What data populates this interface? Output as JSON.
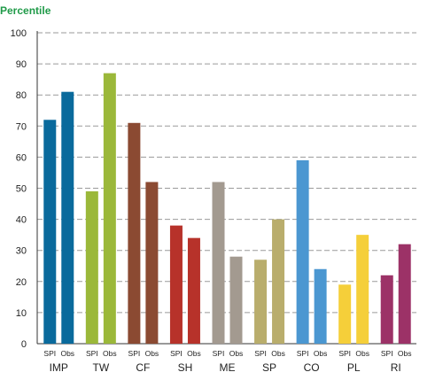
{
  "chart_data": {
    "type": "bar",
    "ylabel": "Percentile",
    "ylim": [
      0,
      100
    ],
    "yticks": [
      0,
      10,
      20,
      30,
      40,
      50,
      60,
      70,
      80,
      90,
      100
    ],
    "grid": "horizontal-dashed",
    "bar_labels": [
      "SPI",
      "Obs"
    ],
    "categories": [
      {
        "name": "IMP",
        "color": "#0a6a9c",
        "values": [
          72,
          81
        ]
      },
      {
        "name": "TW",
        "color": "#9bb83a",
        "values": [
          49,
          87
        ]
      },
      {
        "name": "CF",
        "color": "#8b4a32",
        "values": [
          71,
          52
        ]
      },
      {
        "name": "SH",
        "color": "#b7322a",
        "values": [
          38,
          34
        ]
      },
      {
        "name": "ME",
        "color": "#a39a90",
        "values": [
          52,
          28
        ]
      },
      {
        "name": "SP",
        "color": "#b9ad6c",
        "values": [
          27,
          40
        ]
      },
      {
        "name": "CO",
        "color": "#4b97d1",
        "values": [
          59,
          24
        ]
      },
      {
        "name": "PL",
        "color": "#f5cf3a",
        "values": [
          19,
          35
        ]
      },
      {
        "name": "RI",
        "color": "#9c3267",
        "values": [
          22,
          32
        ]
      }
    ]
  }
}
